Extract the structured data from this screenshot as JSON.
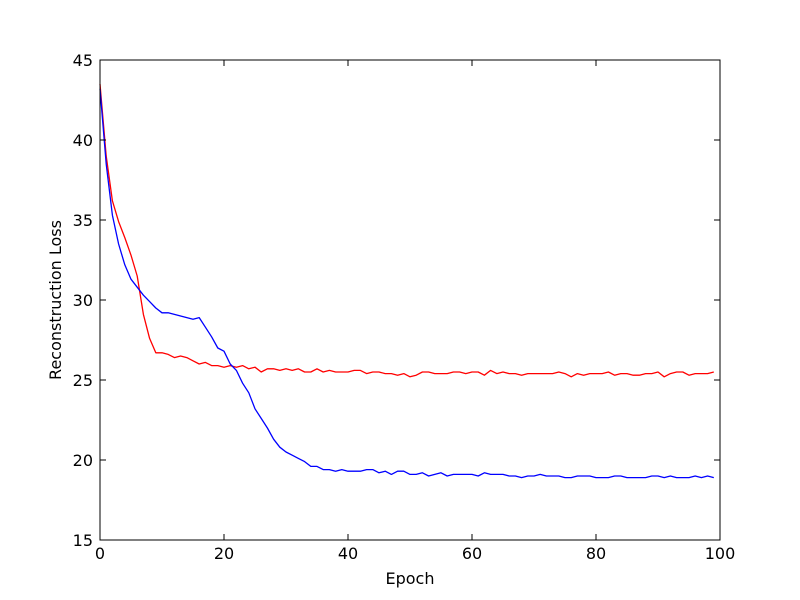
{
  "chart_data": {
    "type": "line",
    "title": "",
    "xlabel": "Epoch",
    "ylabel": "Reconstruction Loss",
    "xlim": [
      0,
      100
    ],
    "ylim": [
      15,
      45
    ],
    "xticks": [
      0,
      20,
      40,
      60,
      80,
      100
    ],
    "yticks": [
      15,
      20,
      25,
      30,
      35,
      40,
      45
    ],
    "grid": false,
    "legend": "none",
    "series": [
      {
        "color": "#ff0000",
        "x": [
          0,
          1,
          2,
          3,
          4,
          5,
          6,
          7,
          8,
          9,
          10,
          11,
          12,
          13,
          14,
          15,
          16,
          17,
          18,
          19,
          20,
          21,
          22,
          23,
          24,
          25,
          26,
          27,
          28,
          29,
          30,
          31,
          32,
          33,
          34,
          35,
          36,
          37,
          38,
          39,
          40,
          41,
          42,
          43,
          44,
          45,
          46,
          47,
          48,
          49,
          50,
          51,
          52,
          53,
          54,
          55,
          56,
          57,
          58,
          59,
          60,
          61,
          62,
          63,
          64,
          65,
          66,
          67,
          68,
          69,
          70,
          71,
          72,
          73,
          74,
          75,
          76,
          77,
          78,
          79,
          80,
          81,
          82,
          83,
          84,
          85,
          86,
          87,
          88,
          89,
          90,
          91,
          92,
          93,
          94,
          95,
          96,
          97,
          98,
          99
        ],
        "y": [
          43.5,
          39.0,
          36.2,
          34.9,
          33.9,
          32.8,
          31.5,
          29.1,
          27.6,
          26.7,
          26.7,
          26.6,
          26.4,
          26.5,
          26.4,
          26.2,
          26.0,
          26.1,
          25.9,
          25.9,
          25.8,
          25.9,
          25.8,
          25.9,
          25.7,
          25.8,
          25.5,
          25.7,
          25.7,
          25.6,
          25.7,
          25.6,
          25.7,
          25.5,
          25.5,
          25.7,
          25.5,
          25.6,
          25.5,
          25.5,
          25.5,
          25.6,
          25.6,
          25.4,
          25.5,
          25.5,
          25.4,
          25.4,
          25.3,
          25.4,
          25.2,
          25.3,
          25.5,
          25.5,
          25.4,
          25.4,
          25.4,
          25.5,
          25.5,
          25.4,
          25.5,
          25.5,
          25.3,
          25.6,
          25.4,
          25.5,
          25.4,
          25.4,
          25.3,
          25.4,
          25.4,
          25.4,
          25.4,
          25.4,
          25.5,
          25.4,
          25.2,
          25.4,
          25.3,
          25.4,
          25.4,
          25.4,
          25.5,
          25.3,
          25.4,
          25.4,
          25.3,
          25.3,
          25.4,
          25.4,
          25.5,
          25.2,
          25.4,
          25.5,
          25.5,
          25.3,
          25.4,
          25.4,
          25.4,
          25.5
        ]
      },
      {
        "color": "#0000ff",
        "x": [
          0,
          1,
          2,
          3,
          4,
          5,
          6,
          7,
          8,
          9,
          10,
          11,
          12,
          13,
          14,
          15,
          16,
          17,
          18,
          19,
          20,
          21,
          22,
          23,
          24,
          25,
          26,
          27,
          28,
          29,
          30,
          31,
          32,
          33,
          34,
          35,
          36,
          37,
          38,
          39,
          40,
          41,
          42,
          43,
          44,
          45,
          46,
          47,
          48,
          49,
          50,
          51,
          52,
          53,
          54,
          55,
          56,
          57,
          58,
          59,
          60,
          61,
          62,
          63,
          64,
          65,
          66,
          67,
          68,
          69,
          70,
          71,
          72,
          73,
          74,
          75,
          76,
          77,
          78,
          79,
          80,
          81,
          82,
          83,
          84,
          85,
          86,
          87,
          88,
          89,
          90,
          91,
          92,
          93,
          94,
          95,
          96,
          97,
          98,
          99
        ],
        "y": [
          43.2,
          38.5,
          35.3,
          33.5,
          32.2,
          31.3,
          30.8,
          30.3,
          29.9,
          29.5,
          29.2,
          29.2,
          29.1,
          29.0,
          28.9,
          28.8,
          28.9,
          28.3,
          27.7,
          27.0,
          26.8,
          26.0,
          25.6,
          24.8,
          24.2,
          23.2,
          22.6,
          22.0,
          21.3,
          20.8,
          20.5,
          20.3,
          20.1,
          19.9,
          19.6,
          19.6,
          19.4,
          19.4,
          19.3,
          19.4,
          19.3,
          19.3,
          19.3,
          19.4,
          19.4,
          19.2,
          19.3,
          19.1,
          19.3,
          19.3,
          19.1,
          19.1,
          19.2,
          19.0,
          19.1,
          19.2,
          19.0,
          19.1,
          19.1,
          19.1,
          19.1,
          19.0,
          19.2,
          19.1,
          19.1,
          19.1,
          19.0,
          19.0,
          18.9,
          19.0,
          19.0,
          19.1,
          19.0,
          19.0,
          19.0,
          18.9,
          18.9,
          19.0,
          19.0,
          19.0,
          18.9,
          18.9,
          18.9,
          19.0,
          19.0,
          18.9,
          18.9,
          18.9,
          18.9,
          19.0,
          19.0,
          18.9,
          19.0,
          18.9,
          18.9,
          18.9,
          19.0,
          18.9,
          19.0,
          18.9
        ]
      }
    ]
  }
}
